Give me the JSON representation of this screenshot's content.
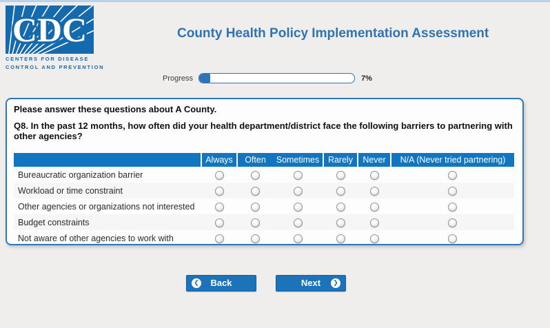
{
  "header": {
    "logo": {
      "acronym": "CDC",
      "line1": "CENTERS FOR DISEASE",
      "line2": "CONTROL AND PREVENTION"
    },
    "title": "County Health Policy Implementation Assessment"
  },
  "progress": {
    "label": "Progress",
    "percent": 7,
    "percent_text": "7%"
  },
  "survey": {
    "intro": "Please answer these questions about A County.",
    "question_number": "Q8.",
    "question_text": " In the past 12 months, how often did your health department/district face the following barriers to partnering with other agencies?",
    "columns": [
      "Always",
      "Often",
      "Sometimes",
      "Rarely",
      "Never",
      "N/A (Never tried partnering)"
    ],
    "no_separator_column_index": 2,
    "rows": [
      "Bureaucratic organization barrier",
      "Workload or time constraint",
      "Other agencies or organizations not interested",
      "Budget constraints",
      "Not aware of other agencies to work with"
    ],
    "selected": []
  },
  "buttons": {
    "back": "Back",
    "next": "Next",
    "back_icon": "❮",
    "next_icon": "❯"
  },
  "colors": {
    "brand_blue": "#1569ad",
    "title_blue": "#2e74b5",
    "table_header_blue": "#1176c1",
    "button_blue": "#1c73ba",
    "progress_fill": "#2e74b5",
    "page_background": "#efeeec",
    "top_strip": "#b9d0e8"
  }
}
